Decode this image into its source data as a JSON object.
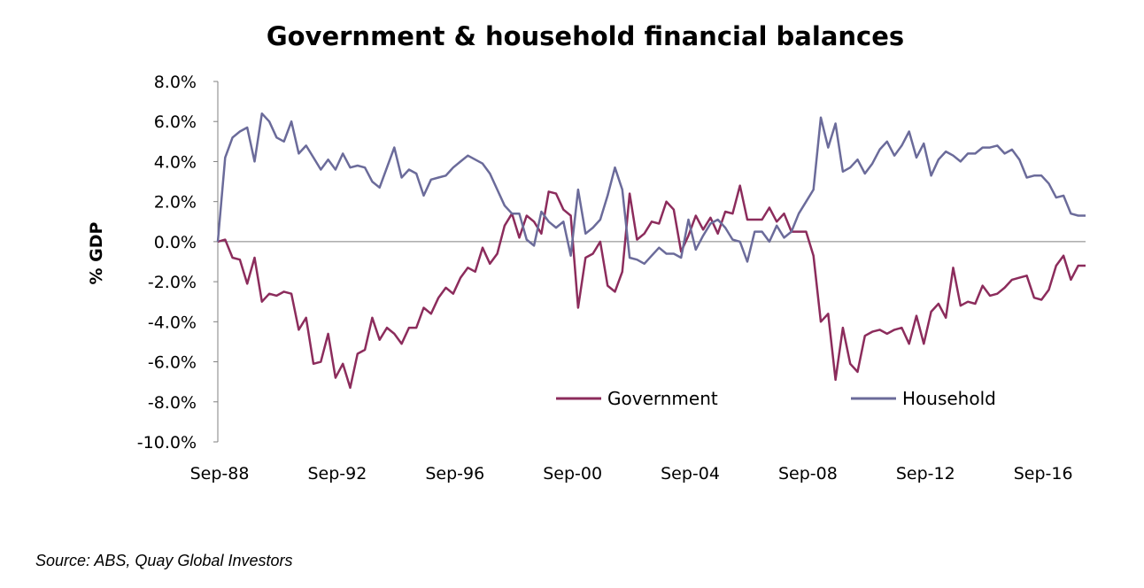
{
  "chart_data": {
    "type": "line",
    "title": "Government & household financial balances",
    "ylabel": "% GDP",
    "xlabel": "",
    "ylim": [
      -10,
      8
    ],
    "y_ticks": [
      "8.0%",
      "6.0%",
      "4.0%",
      "2.0%",
      "0.0%",
      "-2.0%",
      "-4.0%",
      "-6.0%",
      "-8.0%",
      "-10.0%"
    ],
    "y_tick_values": [
      8,
      6,
      4,
      2,
      0,
      -2,
      -4,
      -6,
      -8,
      -10
    ],
    "x_range": [
      1988.75,
      2018.25
    ],
    "x_ticks": [
      "Sep-88",
      "Sep-92",
      "Sep-96",
      "Sep-00",
      "Sep-04",
      "Sep-08",
      "Sep-12",
      "Sep-16"
    ],
    "x_tick_values": [
      1988.75,
      1992.75,
      1996.75,
      2000.75,
      2004.75,
      2008.75,
      2012.75,
      2016.75
    ],
    "legend_position": "lower-right",
    "series": [
      {
        "name": "Government",
        "color": "#8C2C5C",
        "points": [
          [
            1988.75,
            0.0
          ],
          [
            1989.0,
            0.1
          ],
          [
            1989.25,
            -0.8
          ],
          [
            1989.5,
            -0.9
          ],
          [
            1989.75,
            -2.1
          ],
          [
            1990.0,
            -0.8
          ],
          [
            1990.25,
            -3.0
          ],
          [
            1990.5,
            -2.6
          ],
          [
            1990.75,
            -2.7
          ],
          [
            1991.0,
            -2.5
          ],
          [
            1991.25,
            -2.6
          ],
          [
            1991.5,
            -4.4
          ],
          [
            1991.75,
            -3.8
          ],
          [
            1992.0,
            -6.1
          ],
          [
            1992.25,
            -6.0
          ],
          [
            1992.5,
            -4.6
          ],
          [
            1992.75,
            -6.8
          ],
          [
            1993.0,
            -6.1
          ],
          [
            1993.25,
            -7.3
          ],
          [
            1993.5,
            -5.6
          ],
          [
            1993.75,
            -5.4
          ],
          [
            1994.0,
            -3.8
          ],
          [
            1994.25,
            -4.9
          ],
          [
            1994.5,
            -4.3
          ],
          [
            1994.75,
            -4.6
          ],
          [
            1995.0,
            -5.1
          ],
          [
            1995.25,
            -4.3
          ],
          [
            1995.5,
            -4.3
          ],
          [
            1995.75,
            -3.3
          ],
          [
            1996.0,
            -3.6
          ],
          [
            1996.25,
            -2.8
          ],
          [
            1996.5,
            -2.3
          ],
          [
            1996.75,
            -2.6
          ],
          [
            1997.0,
            -1.8
          ],
          [
            1997.25,
            -1.3
          ],
          [
            1997.5,
            -1.5
          ],
          [
            1997.75,
            -0.3
          ],
          [
            1998.0,
            -1.1
          ],
          [
            1998.25,
            -0.6
          ],
          [
            1998.5,
            0.8
          ],
          [
            1998.75,
            1.4
          ],
          [
            1999.0,
            0.2
          ],
          [
            1999.25,
            1.3
          ],
          [
            1999.5,
            1.0
          ],
          [
            1999.75,
            0.4
          ],
          [
            2000.0,
            2.5
          ],
          [
            2000.25,
            2.4
          ],
          [
            2000.5,
            1.6
          ],
          [
            2000.75,
            1.3
          ],
          [
            2001.0,
            -3.3
          ],
          [
            2001.25,
            -0.8
          ],
          [
            2001.5,
            -0.6
          ],
          [
            2001.75,
            0.0
          ],
          [
            2002.0,
            -2.2
          ],
          [
            2002.25,
            -2.5
          ],
          [
            2002.5,
            -1.5
          ],
          [
            2002.75,
            2.4
          ],
          [
            2003.0,
            0.1
          ],
          [
            2003.25,
            0.4
          ],
          [
            2003.5,
            1.0
          ],
          [
            2003.75,
            0.9
          ],
          [
            2004.0,
            2.0
          ],
          [
            2004.25,
            1.6
          ],
          [
            2004.5,
            -0.5
          ],
          [
            2004.75,
            0.3
          ],
          [
            2005.0,
            1.3
          ],
          [
            2005.25,
            0.6
          ],
          [
            2005.5,
            1.2
          ],
          [
            2005.75,
            0.4
          ],
          [
            2006.0,
            1.5
          ],
          [
            2006.25,
            1.4
          ],
          [
            2006.5,
            2.8
          ],
          [
            2006.75,
            1.1
          ],
          [
            2007.0,
            1.1
          ],
          [
            2007.25,
            1.1
          ],
          [
            2007.5,
            1.7
          ],
          [
            2007.75,
            1.0
          ],
          [
            2008.0,
            1.4
          ],
          [
            2008.25,
            0.5
          ],
          [
            2008.5,
            0.5
          ],
          [
            2008.75,
            0.5
          ],
          [
            2009.0,
            -0.7
          ],
          [
            2009.25,
            -4.0
          ],
          [
            2009.5,
            -3.6
          ],
          [
            2009.75,
            -6.9
          ],
          [
            2010.0,
            -4.3
          ],
          [
            2010.25,
            -6.1
          ],
          [
            2010.5,
            -6.5
          ],
          [
            2010.75,
            -4.7
          ],
          [
            2011.0,
            -4.5
          ],
          [
            2011.25,
            -4.4
          ],
          [
            2011.5,
            -4.6
          ],
          [
            2011.75,
            -4.4
          ],
          [
            2012.0,
            -4.3
          ],
          [
            2012.25,
            -5.1
          ],
          [
            2012.5,
            -3.7
          ],
          [
            2012.75,
            -5.1
          ],
          [
            2013.0,
            -3.5
          ],
          [
            2013.25,
            -3.1
          ],
          [
            2013.5,
            -3.8
          ],
          [
            2013.75,
            -1.3
          ],
          [
            2014.0,
            -3.2
          ],
          [
            2014.25,
            -3.0
          ],
          [
            2014.5,
            -3.1
          ],
          [
            2014.75,
            -2.2
          ],
          [
            2015.0,
            -2.7
          ],
          [
            2015.25,
            -2.6
          ],
          [
            2015.5,
            -2.3
          ],
          [
            2015.75,
            -1.9
          ],
          [
            2016.0,
            -1.8
          ],
          [
            2016.25,
            -1.7
          ],
          [
            2016.5,
            -2.8
          ],
          [
            2016.75,
            -2.9
          ],
          [
            2017.0,
            -2.4
          ],
          [
            2017.25,
            -1.2
          ],
          [
            2017.5,
            -0.7
          ],
          [
            2017.75,
            -1.9
          ],
          [
            2018.0,
            -1.2
          ],
          [
            2018.25,
            -1.2
          ]
        ]
      },
      {
        "name": "Household",
        "color": "#6B6B9A",
        "points": [
          [
            1988.75,
            0.0
          ],
          [
            1989.0,
            4.2
          ],
          [
            1989.25,
            5.2
          ],
          [
            1989.5,
            5.5
          ],
          [
            1989.75,
            5.7
          ],
          [
            1990.0,
            4.0
          ],
          [
            1990.25,
            6.4
          ],
          [
            1990.5,
            6.0
          ],
          [
            1990.75,
            5.2
          ],
          [
            1991.0,
            5.0
          ],
          [
            1991.25,
            6.0
          ],
          [
            1991.5,
            4.4
          ],
          [
            1991.75,
            4.8
          ],
          [
            1992.0,
            4.2
          ],
          [
            1992.25,
            3.6
          ],
          [
            1992.5,
            4.1
          ],
          [
            1992.75,
            3.6
          ],
          [
            1993.0,
            4.4
          ],
          [
            1993.25,
            3.7
          ],
          [
            1993.5,
            3.8
          ],
          [
            1993.75,
            3.7
          ],
          [
            1994.0,
            3.0
          ],
          [
            1994.25,
            2.7
          ],
          [
            1994.5,
            3.7
          ],
          [
            1994.75,
            4.7
          ],
          [
            1995.0,
            3.2
          ],
          [
            1995.25,
            3.6
          ],
          [
            1995.5,
            3.4
          ],
          [
            1995.75,
            2.3
          ],
          [
            1996.0,
            3.1
          ],
          [
            1996.25,
            3.2
          ],
          [
            1996.5,
            3.3
          ],
          [
            1996.75,
            3.7
          ],
          [
            1997.0,
            4.0
          ],
          [
            1997.25,
            4.3
          ],
          [
            1997.5,
            4.1
          ],
          [
            1997.75,
            3.9
          ],
          [
            1998.0,
            3.4
          ],
          [
            1998.25,
            2.6
          ],
          [
            1998.5,
            1.8
          ],
          [
            1998.75,
            1.4
          ],
          [
            1999.0,
            1.4
          ],
          [
            1999.25,
            0.1
          ],
          [
            1999.5,
            -0.2
          ],
          [
            1999.75,
            1.5
          ],
          [
            2000.0,
            1.0
          ],
          [
            2000.25,
            0.7
          ],
          [
            2000.5,
            1.0
          ],
          [
            2000.75,
            -0.7
          ],
          [
            2001.0,
            2.6
          ],
          [
            2001.25,
            0.4
          ],
          [
            2001.5,
            0.7
          ],
          [
            2001.75,
            1.1
          ],
          [
            2002.0,
            2.3
          ],
          [
            2002.25,
            3.7
          ],
          [
            2002.5,
            2.6
          ],
          [
            2002.75,
            -0.8
          ],
          [
            2003.0,
            -0.9
          ],
          [
            2003.25,
            -1.1
          ],
          [
            2003.5,
            -0.7
          ],
          [
            2003.75,
            -0.3
          ],
          [
            2004.0,
            -0.6
          ],
          [
            2004.25,
            -0.6
          ],
          [
            2004.5,
            -0.8
          ],
          [
            2004.75,
            1.1
          ],
          [
            2005.0,
            -0.4
          ],
          [
            2005.25,
            0.3
          ],
          [
            2005.5,
            0.9
          ],
          [
            2005.75,
            1.1
          ],
          [
            2006.0,
            0.7
          ],
          [
            2006.25,
            0.1
          ],
          [
            2006.5,
            0.0
          ],
          [
            2006.75,
            -1.0
          ],
          [
            2007.0,
            0.5
          ],
          [
            2007.25,
            0.5
          ],
          [
            2007.5,
            0.0
          ],
          [
            2007.75,
            0.8
          ],
          [
            2008.0,
            0.2
          ],
          [
            2008.25,
            0.5
          ],
          [
            2008.5,
            1.4
          ],
          [
            2008.75,
            2.0
          ],
          [
            2009.0,
            2.6
          ],
          [
            2009.25,
            6.2
          ],
          [
            2009.5,
            4.7
          ],
          [
            2009.75,
            5.9
          ],
          [
            2010.0,
            3.5
          ],
          [
            2010.25,
            3.7
          ],
          [
            2010.5,
            4.1
          ],
          [
            2010.75,
            3.4
          ],
          [
            2011.0,
            3.9
          ],
          [
            2011.25,
            4.6
          ],
          [
            2011.5,
            5.0
          ],
          [
            2011.75,
            4.3
          ],
          [
            2012.0,
            4.8
          ],
          [
            2012.25,
            5.5
          ],
          [
            2012.5,
            4.2
          ],
          [
            2012.75,
            4.9
          ],
          [
            2013.0,
            3.3
          ],
          [
            2013.25,
            4.1
          ],
          [
            2013.5,
            4.5
          ],
          [
            2013.75,
            4.3
          ],
          [
            2014.0,
            4.0
          ],
          [
            2014.25,
            4.4
          ],
          [
            2014.5,
            4.4
          ],
          [
            2014.75,
            4.7
          ],
          [
            2015.0,
            4.7
          ],
          [
            2015.25,
            4.8
          ],
          [
            2015.5,
            4.4
          ],
          [
            2015.75,
            4.6
          ],
          [
            2016.0,
            4.1
          ],
          [
            2016.25,
            3.2
          ],
          [
            2016.5,
            3.3
          ],
          [
            2016.75,
            3.3
          ],
          [
            2017.0,
            2.9
          ],
          [
            2017.25,
            2.2
          ],
          [
            2017.5,
            2.3
          ],
          [
            2017.75,
            1.4
          ],
          [
            2018.0,
            1.3
          ],
          [
            2018.25,
            1.3
          ]
        ]
      }
    ]
  },
  "source": "Source: ABS, Quay Global Investors"
}
